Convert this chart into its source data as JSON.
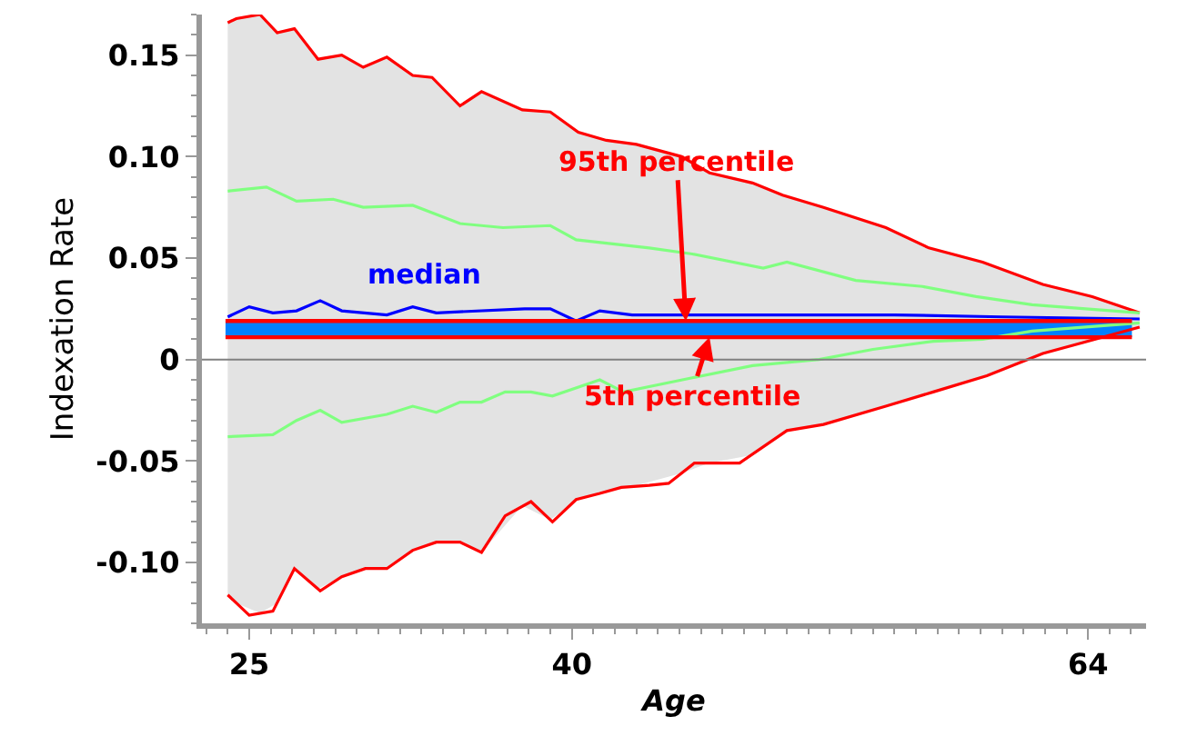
{
  "chart_data": {
    "type": "line",
    "xlabel": "Age",
    "ylabel": "Indexation Rate",
    "xlim": [
      22.8,
      66.7
    ],
    "xticks": [
      25,
      40,
      64
    ],
    "ylim": [
      -0.13,
      0.17
    ],
    "yticks": [
      {
        "value": 0.15,
        "label": "0.15"
      },
      {
        "value": 0.1,
        "label": "0.10"
      },
      0.05,
      0,
      -0.05,
      {
        "value": -0.1,
        "label": "-0.10"
      }
    ],
    "series": [
      {
        "color": "#ff0000",
        "x": [
          24.0,
          24.4,
          25.5,
          26.3,
          27.1,
          28.2,
          29.3,
          30.3,
          31.4,
          32.6,
          33.5,
          34.8,
          35.8,
          37.7,
          39.0,
          40.3,
          41.6,
          43.0,
          45.1,
          46.4,
          48.4,
          49.8,
          51.7,
          54.6,
          56.6,
          59.1,
          61.9,
          64.2,
          66.4
        ],
        "values": [
          0.166,
          0.168,
          0.17,
          0.161,
          0.163,
          0.148,
          0.15,
          0.144,
          0.149,
          0.14,
          0.139,
          0.125,
          0.132,
          0.123,
          0.122,
          0.112,
          0.108,
          0.106,
          0.1,
          0.092,
          0.087,
          0.081,
          0.075,
          0.065,
          0.055,
          0.048,
          0.037,
          0.031,
          0.023
        ],
        "upper": [
          0.166,
          0.168,
          0.17,
          0.161,
          0.163,
          0.148,
          0.15,
          0.144,
          0.149,
          0.14,
          0.139,
          0.125,
          0.132,
          0.123,
          0.122,
          0.112,
          0.108,
          0.106,
          0.1,
          0.092,
          0.087,
          0.081,
          0.075,
          0.065,
          0.055,
          0.048,
          0.037,
          0.031,
          0.023
        ],
        "lower": [
          -0.116,
          -0.12,
          -0.125,
          -0.12,
          -0.103,
          -0.113,
          -0.107,
          -0.103,
          -0.103,
          -0.094,
          -0.09,
          -0.09,
          -0.095,
          -0.072,
          -0.079,
          -0.069,
          -0.065,
          -0.062,
          -0.056,
          -0.051,
          -0.047,
          -0.036,
          -0.032,
          -0.023,
          -0.017,
          -0.009,
          0.003,
          0.009,
          0.016
        ]
      },
      {
        "color": "#ff0000",
        "x": [
          24.0,
          24.4,
          25.0,
          26.1,
          27.1,
          28.3,
          29.3,
          30.4,
          31.4,
          32.6,
          33.7,
          34.8,
          35.8,
          36.9,
          38.1,
          39.1,
          40.2,
          41.3,
          42.3,
          43.6,
          44.5,
          45.7,
          47.8,
          50.0,
          51.7,
          54.6,
          56.8,
          59.3,
          61.9,
          63.3,
          66.4
        ],
        "values": [
          -0.116,
          -0.12,
          -0.126,
          -0.124,
          -0.103,
          -0.114,
          -0.107,
          -0.103,
          -0.103,
          -0.094,
          -0.09,
          -0.09,
          -0.095,
          -0.077,
          -0.07,
          -0.08,
          -0.069,
          -0.066,
          -0.063,
          -0.062,
          -0.061,
          -0.051,
          -0.051,
          -0.035,
          -0.032,
          -0.023,
          -0.016,
          -0.008,
          0.003,
          0.007,
          0.016
        ]
      },
      {
        "color": "#80ff80",
        "x": [
          24.0,
          25.8,
          27.2,
          28.9,
          30.3,
          32.6,
          34.8,
          36.8,
          39.0,
          40.2,
          43.6,
          45.6,
          48.9,
          50.0,
          53.2,
          56.3,
          58.8,
          61.4,
          66.4
        ],
        "values": [
          0.083,
          0.085,
          0.078,
          0.079,
          0.075,
          0.076,
          0.067,
          0.065,
          0.066,
          0.059,
          0.055,
          0.052,
          0.045,
          0.048,
          0.039,
          0.036,
          0.031,
          0.027,
          0.023
        ]
      },
      {
        "color": "#80ff80",
        "x": [
          24.0,
          26.1,
          27.2,
          28.3,
          29.3,
          31.4,
          32.6,
          33.7,
          34.8,
          35.8,
          36.9,
          38.1,
          39.1,
          41.3,
          42.4,
          45.6,
          48.4,
          51.5,
          54.0,
          56.8,
          59.1,
          61.4,
          66.4
        ],
        "values": [
          -0.038,
          -0.037,
          -0.03,
          -0.025,
          -0.031,
          -0.027,
          -0.023,
          -0.026,
          -0.021,
          -0.021,
          -0.016,
          -0.016,
          -0.018,
          -0.01,
          -0.016,
          -0.009,
          -0.003,
          0.0,
          0.005,
          0.009,
          0.01,
          0.014,
          0.018
        ]
      },
      {
        "name": "median",
        "color": "#0000ff",
        "x": [
          24.0,
          25.0,
          26.1,
          27.2,
          28.3,
          29.3,
          31.4,
          32.6,
          33.7,
          37.8,
          39.0,
          40.2,
          41.3,
          42.8,
          45.6,
          50.0,
          55.0,
          60.0,
          66.4
        ],
        "values": [
          0.021,
          0.026,
          0.023,
          0.024,
          0.029,
          0.024,
          0.022,
          0.026,
          0.023,
          0.025,
          0.025,
          0.019,
          0.024,
          0.022,
          0.022,
          0.022,
          0.022,
          0.021,
          0.02
        ]
      }
    ],
    "bands": [
      {
        "axis": "y",
        "from": 0.011,
        "to": 0.019,
        "color": "#0080ff"
      }
    ],
    "ref_lines": [
      {
        "axis": "y",
        "value": 0,
        "color": "#808080"
      },
      {
        "axis": "y",
        "value": 0.019,
        "color": "#ff0000"
      },
      {
        "axis": "y",
        "value": 0.011,
        "color": "#ff0000"
      }
    ],
    "annotations": [
      {
        "text": "95th percentile",
        "x": 45.3,
        "y": 0.019
      },
      {
        "text": "5th percentile",
        "x": 46.4,
        "y": 0.011
      }
    ],
    "grid": false,
    "legend": false,
    "marker": "none",
    "line_style": "solid"
  }
}
